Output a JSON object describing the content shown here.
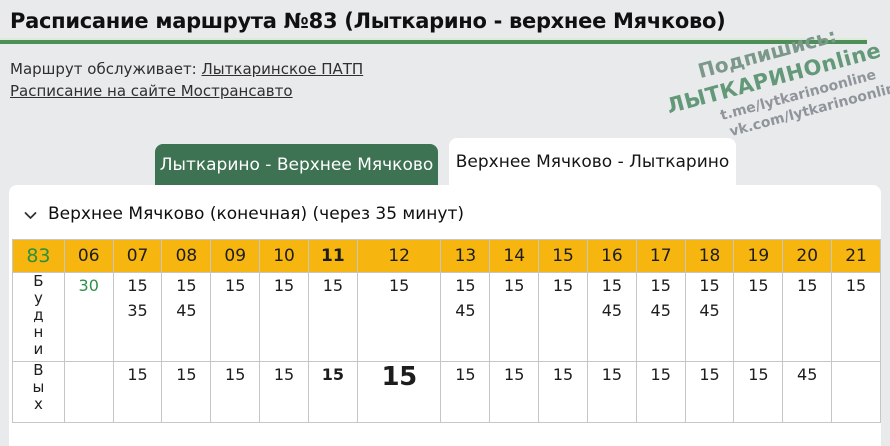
{
  "header": {
    "title": "Расписание маршрута №83 (Лыткарино - верхнее Мячково)",
    "served_by_label": "Маршрут обслуживает:",
    "served_by_link": "Лыткаринское ПАТП",
    "site_link": "Расписание на сайте Мострансавто"
  },
  "watermark": {
    "line1": "Подпишись:",
    "line2": "ЛЫТКАРИНОnline",
    "line3": "t.me/lytkarinoonline",
    "line4": "vk.com/lytkarinoonline"
  },
  "tabs": [
    {
      "label": "Лыткарино - Верхнее Мячково",
      "active": false
    },
    {
      "label": "Верхнее Мячково - Лыткарино",
      "active": true
    }
  ],
  "section": {
    "title": "Верхнее Мячково (конечная) (через 35 минут)"
  },
  "schedule": {
    "route_number": "83",
    "hours": [
      {
        "label": "06"
      },
      {
        "label": "07"
      },
      {
        "label": "08"
      },
      {
        "label": "09"
      },
      {
        "label": "10"
      },
      {
        "label": "11",
        "bold": true
      },
      {
        "label": "12"
      },
      {
        "label": "13"
      },
      {
        "label": "14"
      },
      {
        "label": "15"
      },
      {
        "label": "16"
      },
      {
        "label": "17"
      },
      {
        "label": "18"
      },
      {
        "label": "19"
      },
      {
        "label": "20"
      },
      {
        "label": "21"
      }
    ],
    "rows": [
      {
        "day": "Будни",
        "type": "weekday",
        "cells": [
          {
            "minutes": [
              "30"
            ],
            "style": "green"
          },
          {
            "minutes": [
              "15",
              "35"
            ]
          },
          {
            "minutes": [
              "15",
              "45"
            ]
          },
          {
            "minutes": [
              "15"
            ]
          },
          {
            "minutes": [
              "15"
            ]
          },
          {
            "minutes": [
              "15"
            ]
          },
          {
            "minutes": [
              "15"
            ]
          },
          {
            "minutes": [
              "15",
              "45"
            ]
          },
          {
            "minutes": [
              "15"
            ]
          },
          {
            "minutes": [
              "15"
            ]
          },
          {
            "minutes": [
              "15",
              "45"
            ]
          },
          {
            "minutes": [
              "15",
              "45"
            ]
          },
          {
            "minutes": [
              "15",
              "45"
            ]
          },
          {
            "minutes": [
              "15"
            ]
          },
          {
            "minutes": [
              "15"
            ]
          },
          {
            "minutes": [
              "15"
            ]
          }
        ]
      },
      {
        "day": "Вых",
        "type": "weekend",
        "cells": [
          {
            "minutes": []
          },
          {
            "minutes": [
              "15"
            ]
          },
          {
            "minutes": [
              "15"
            ]
          },
          {
            "minutes": [
              "15"
            ]
          },
          {
            "minutes": [
              "15"
            ]
          },
          {
            "minutes": [
              "15"
            ],
            "style": "bold"
          },
          {
            "minutes": [
              "15"
            ],
            "style": "big"
          },
          {
            "minutes": [
              "15"
            ]
          },
          {
            "minutes": [
              "15"
            ]
          },
          {
            "minutes": [
              "15"
            ]
          },
          {
            "minutes": [
              "15"
            ]
          },
          {
            "minutes": [
              "15"
            ]
          },
          {
            "minutes": [
              "15"
            ]
          },
          {
            "minutes": [
              "15"
            ]
          },
          {
            "minutes": [
              "45"
            ]
          },
          {
            "minutes": []
          }
        ]
      }
    ]
  },
  "colors": {
    "page_background": "#e9eaec",
    "title_underline_green": "#4e8e58",
    "tab_active_bg": "#ffffff",
    "tab_inactive_bg": "#3d7253",
    "table_header_bg": "#f6b60f",
    "route_number_green": "#2e8f3e",
    "minute_green": "#2e9147",
    "watermark_green": "#639878",
    "watermark_gray": "#90959b"
  }
}
